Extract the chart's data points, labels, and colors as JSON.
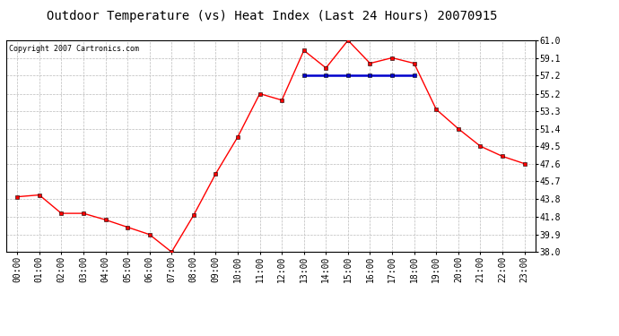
{
  "title": "Outdoor Temperature (vs) Heat Index (Last 24 Hours) 20070915",
  "copyright_text": "Copyright 2007 Cartronics.com",
  "x_labels": [
    "00:00",
    "01:00",
    "02:00",
    "03:00",
    "04:00",
    "05:00",
    "06:00",
    "07:00",
    "08:00",
    "09:00",
    "10:00",
    "11:00",
    "12:00",
    "13:00",
    "14:00",
    "15:00",
    "16:00",
    "17:00",
    "18:00",
    "19:00",
    "20:00",
    "21:00",
    "22:00",
    "23:00"
  ],
  "temp_values": [
    44.0,
    44.2,
    42.2,
    42.2,
    41.5,
    40.7,
    39.9,
    38.0,
    42.0,
    46.5,
    50.5,
    55.2,
    54.5,
    59.9,
    58.0,
    61.0,
    58.5,
    59.1,
    58.5,
    53.5,
    51.4,
    49.5,
    48.4,
    47.6
  ],
  "heat_values": [
    null,
    null,
    null,
    null,
    null,
    null,
    null,
    null,
    null,
    null,
    null,
    null,
    null,
    57.2,
    57.2,
    57.2,
    57.2,
    57.2,
    57.2,
    null,
    null,
    null,
    null,
    null
  ],
  "ylim": [
    38.0,
    61.0
  ],
  "yticks": [
    38.0,
    39.9,
    41.8,
    43.8,
    45.7,
    47.6,
    49.5,
    51.4,
    53.3,
    55.2,
    57.2,
    59.1,
    61.0
  ],
  "temp_color": "#ff0000",
  "heat_color": "#0000cc",
  "grid_color": "#bbbbbb",
  "bg_color": "#ffffff",
  "title_fontsize": 10,
  "tick_fontsize": 7,
  "copyright_fontsize": 6,
  "marker": "s",
  "marker_size": 2.5
}
